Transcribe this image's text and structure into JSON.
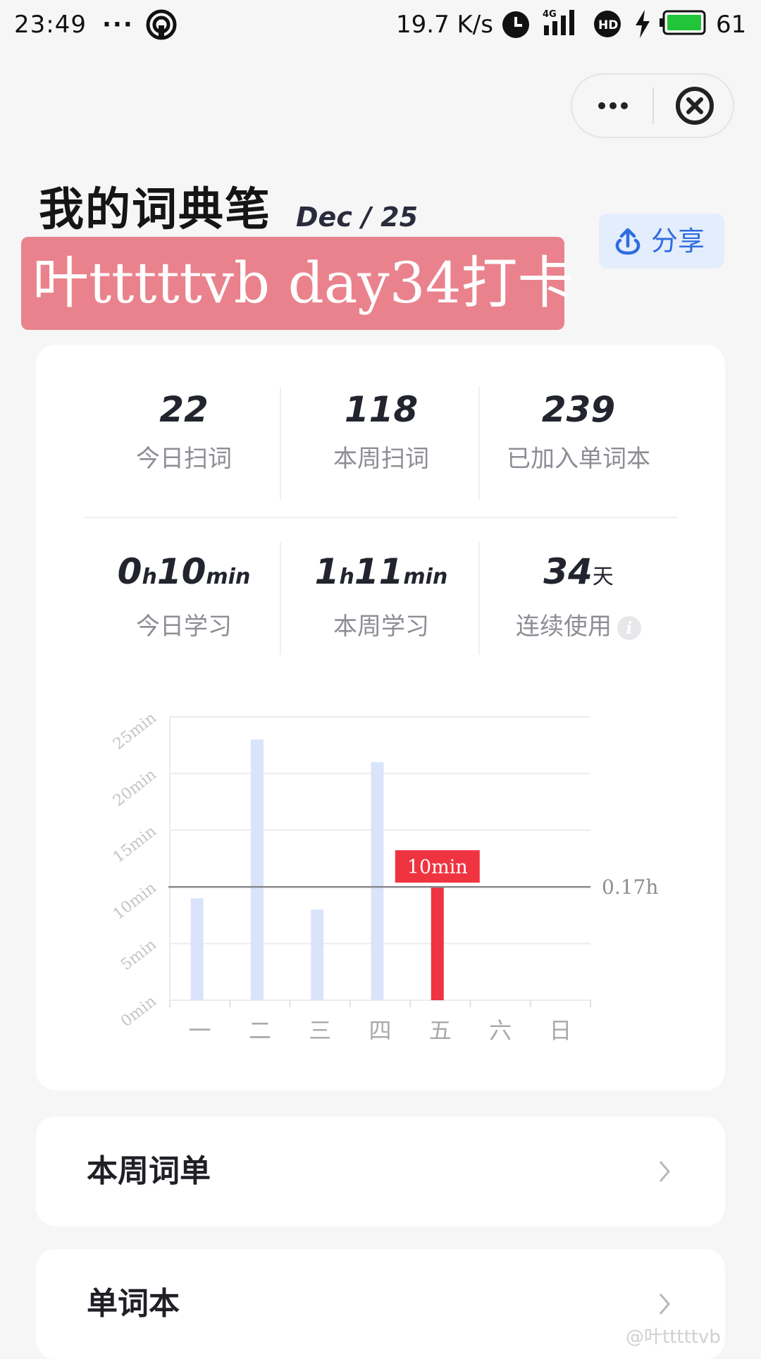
{
  "status_bar": {
    "time": "23:49",
    "dots": "···",
    "speed": "19.7 K/s",
    "battery": "61",
    "icons": [
      "hotspot-icon",
      "alarm-icon",
      "signal-4g-icon",
      "hd-icon",
      "charging-icon",
      "battery-icon"
    ]
  },
  "header": {
    "title": "我的词典笔",
    "date": "Dec / 25",
    "share_label": "分享",
    "banner": "叶tttttvb day34打卡"
  },
  "stats": {
    "today_scan": {
      "value": "22",
      "label": "今日扫词"
    },
    "week_scan": {
      "value": "118",
      "label": "本周扫词"
    },
    "wordbook": {
      "value": "239",
      "label": "已加入单词本"
    },
    "today_study": {
      "h": "0",
      "h_unit": "h",
      "m": "10",
      "m_unit": "min",
      "label": "今日学习"
    },
    "week_study": {
      "h": "1",
      "h_unit": "h",
      "m": "11",
      "m_unit": "min",
      "label": "本周学习"
    },
    "streak": {
      "value": "34",
      "unit": "天",
      "label": "连续使用"
    }
  },
  "chart_data": {
    "type": "bar",
    "categories": [
      "一",
      "二",
      "三",
      "四",
      "五",
      "六",
      "日"
    ],
    "values": [
      9,
      23,
      8,
      21,
      10,
      0,
      0
    ],
    "highlight_index": 4,
    "highlight_label": "10min",
    "average_line": {
      "value": 10,
      "label": "0.17h"
    },
    "ylim": [
      0,
      25
    ],
    "yticks": [
      0,
      5,
      10,
      15,
      20,
      25
    ],
    "ytick_labels": [
      "0min",
      "5min",
      "10min",
      "15min",
      "20min",
      "25min"
    ],
    "grid": true,
    "colors": {
      "bar": "#d9e4fb",
      "highlight": "#ef3340",
      "avg_line": "#8a8a8f"
    }
  },
  "lists": {
    "week_words": "本周词单",
    "wordbook": "单词本"
  },
  "watermark": "@叶tttttvb",
  "colors": {
    "accent": "#2f6ce0",
    "banner": "#e9828c"
  }
}
